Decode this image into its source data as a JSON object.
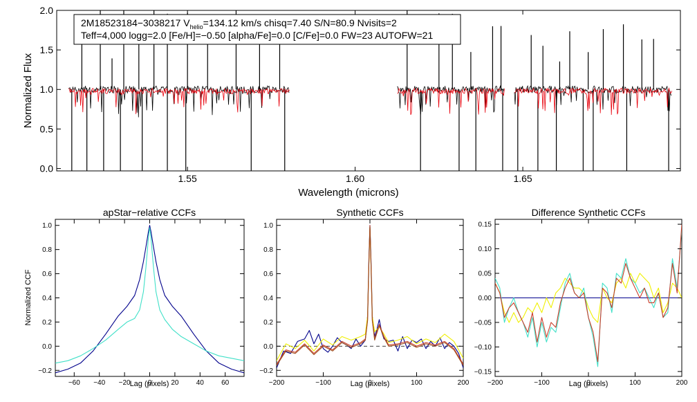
{
  "top_panel": {
    "title_line1_prefix": "2M18523184−3038217  V",
    "title_line1_sub": "helio",
    "title_line1_rest": "=134.12 km/s  chisq=7.40  S/N=80.9  Nvisits=2",
    "title_line2": "Teff=4,000 logg=2.0 [Fe/H]=−0.50 [alpha/Fe]=0.0 [C/Fe]=0.0 FW=23 AUTOFW=21"
  },
  "colors": {
    "observed": "#000000",
    "model": "#e8000b",
    "ccf_dark": "#00008b",
    "ccf_light": "#40e0c8",
    "ccf_yellow": "#f0f000",
    "ccf_red": "#c83c28",
    "ccf_brown": "#a05020",
    "zero_dash": "#404040"
  },
  "chart_data": [
    {
      "id": "spectrum",
      "type": "line",
      "title": "",
      "xlabel": "Wavelength (microns)",
      "ylabel": "Normalized Flux",
      "xlim": [
        1.511,
        1.697
      ],
      "ylim": [
        -0.03,
        2.0
      ],
      "xticks": [
        1.55,
        1.6,
        1.65
      ],
      "xtick_labels": [
        "1.55",
        "1.60",
        "1.65"
      ],
      "yticks": [
        0.0,
        0.5,
        1.0,
        1.5,
        2.0
      ],
      "ytick_labels": [
        "0.0",
        "0.5",
        "1.0",
        "1.5",
        "2.0"
      ],
      "segments": [
        [
          1.5145,
          1.5805
        ],
        [
          1.6125,
          1.6445
        ],
        [
          1.6475,
          1.6945
        ]
      ],
      "continuum": 1.0,
      "series": [
        {
          "name": "observed",
          "color_key": "observed"
        },
        {
          "name": "model",
          "color_key": "model"
        }
      ],
      "spikes_up": [
        1.5185,
        1.524,
        1.5275,
        1.531,
        1.5355,
        1.54,
        1.544,
        1.55,
        1.556,
        1.5645,
        1.5715,
        1.5775,
        1.6155,
        1.625,
        1.629,
        1.6345,
        1.641,
        1.6435,
        1.6525,
        1.656,
        1.661,
        1.664,
        1.6695,
        1.674,
        1.68,
        1.6855,
        1.689
      ],
      "spikes_down": [
        1.5155,
        1.52,
        1.525,
        1.53,
        1.5365,
        1.544,
        1.5495,
        1.569,
        1.579,
        1.6195,
        1.631,
        1.636,
        1.644,
        1.6485,
        1.6545,
        1.66,
        1.668,
        1.671,
        1.681,
        1.6935
      ]
    },
    {
      "id": "apstar-ccf",
      "type": "line",
      "title": "apStar−relative CCFs",
      "xlabel": "Lag (pixels)",
      "ylabel": "Normalized CCF",
      "xlim": [
        -75,
        75
      ],
      "ylim": [
        -0.25,
        1.05
      ],
      "xticks": [
        -60,
        -40,
        -20,
        0,
        20,
        40,
        60
      ],
      "xtick_labels": [
        "−60",
        "−40",
        "−20",
        "0",
        "20",
        "40",
        "60"
      ],
      "yticks": [
        -0.2,
        0.0,
        0.2,
        0.4,
        0.6,
        0.8,
        1.0
      ],
      "ytick_labels": [
        "−0.2",
        "0.0",
        "0.2",
        "0.4",
        "0.6",
        "0.8",
        "1.0"
      ],
      "series": [
        {
          "name": "ccf-1",
          "color_key": "ccf_dark",
          "x": [
            -75,
            -65,
            -55,
            -45,
            -35,
            -25,
            -18,
            -12,
            -8,
            -5,
            -3,
            -1,
            0,
            1,
            3,
            5,
            8,
            12,
            18,
            25,
            35,
            45,
            55,
            65,
            75
          ],
          "y": [
            -0.22,
            -0.19,
            -0.14,
            -0.04,
            0.1,
            0.25,
            0.33,
            0.42,
            0.55,
            0.7,
            0.82,
            0.95,
            1.0,
            0.95,
            0.82,
            0.7,
            0.55,
            0.42,
            0.33,
            0.25,
            0.1,
            -0.04,
            -0.14,
            -0.19,
            -0.22
          ]
        },
        {
          "name": "ccf-2",
          "color_key": "ccf_light",
          "x": [
            -75,
            -65,
            -55,
            -45,
            -35,
            -25,
            -18,
            -12,
            -8,
            -5,
            -3,
            -1,
            0,
            1,
            3,
            5,
            8,
            12,
            18,
            25,
            35,
            45,
            55,
            65,
            75
          ],
          "y": [
            -0.14,
            -0.12,
            -0.08,
            -0.02,
            0.05,
            0.14,
            0.2,
            0.23,
            0.3,
            0.45,
            0.65,
            0.9,
            0.98,
            0.9,
            0.65,
            0.45,
            0.3,
            0.22,
            0.14,
            0.08,
            0.02,
            -0.04,
            -0.08,
            -0.1,
            -0.12
          ]
        }
      ]
    },
    {
      "id": "synthetic-ccf",
      "type": "line",
      "title": "Synthetic CCFs",
      "xlabel": "Lag (pixels)",
      "ylabel": "",
      "xlim": [
        -200,
        200
      ],
      "ylim": [
        -0.25,
        1.05
      ],
      "xticks": [
        -200,
        -100,
        0,
        100,
        200
      ],
      "xtick_labels": [
        "−200",
        "−100",
        "0",
        "100",
        "200"
      ],
      "yticks": [
        -0.2,
        0.0,
        0.2,
        0.4,
        0.6,
        0.8,
        1.0
      ],
      "ytick_labels": [
        "−0.2",
        "0.0",
        "0.2",
        "0.4",
        "0.6",
        "0.8",
        "1.0"
      ],
      "zero_line": 0.0,
      "series": [
        {
          "name": "synth-dark",
          "color_key": "ccf_dark",
          "x": [
            -200,
            -185,
            -170,
            -155,
            -140,
            -130,
            -120,
            -110,
            -100,
            -90,
            -80,
            -70,
            -60,
            -50,
            -40,
            -30,
            -20,
            -10,
            -5,
            -2,
            0,
            2,
            5,
            10,
            15,
            20,
            25,
            30,
            40,
            50,
            60,
            70,
            80,
            90,
            100,
            110,
            120,
            130,
            140,
            150,
            160,
            170,
            180,
            190,
            200
          ],
          "y": [
            -0.18,
            -0.04,
            -0.06,
            0.04,
            0.06,
            0.13,
            0.02,
            0.1,
            -0.02,
            -0.05,
            0.0,
            0.07,
            0.03,
            0.01,
            -0.02,
            0.06,
            0.0,
            0.05,
            0.25,
            0.75,
            1.0,
            0.75,
            0.25,
            0.08,
            0.14,
            0.22,
            0.12,
            0.06,
            0.04,
            0.05,
            -0.04,
            0.08,
            -0.02,
            0.05,
            0.03,
            0.06,
            -0.02,
            0.04,
            0.0,
            0.07,
            -0.02,
            0.03,
            0.0,
            -0.06,
            -0.18
          ]
        },
        {
          "name": "synth-yellow",
          "color_key": "ccf_yellow",
          "x": [
            -200,
            -180,
            -160,
            -140,
            -120,
            -100,
            -80,
            -60,
            -40,
            -20,
            -10,
            -5,
            -2,
            0,
            2,
            5,
            10,
            20,
            30,
            40,
            60,
            80,
            100,
            120,
            140,
            160,
            180,
            200
          ],
          "y": [
            -0.12,
            0.02,
            -0.02,
            0.05,
            -0.04,
            0.06,
            0.01,
            0.08,
            0.05,
            0.08,
            0.1,
            0.25,
            0.7,
            0.98,
            0.7,
            0.25,
            0.12,
            0.16,
            0.1,
            0.03,
            0.05,
            0.08,
            0.02,
            0.06,
            0.03,
            0.1,
            0.04,
            -0.1
          ]
        },
        {
          "name": "synth-red",
          "color_key": "ccf_red",
          "x": [
            -200,
            -180,
            -160,
            -140,
            -120,
            -100,
            -80,
            -60,
            -40,
            -20,
            -10,
            -5,
            -2,
            0,
            2,
            5,
            10,
            20,
            30,
            40,
            60,
            80,
            100,
            120,
            140,
            160,
            180,
            200
          ],
          "y": [
            -0.15,
            -0.03,
            -0.05,
            0.02,
            -0.06,
            0.01,
            -0.03,
            0.04,
            0.0,
            0.03,
            0.06,
            0.22,
            0.72,
            1.0,
            0.72,
            0.22,
            0.06,
            0.18,
            0.08,
            0.01,
            0.02,
            0.04,
            0.0,
            0.03,
            0.01,
            0.04,
            -0.02,
            -0.15
          ]
        },
        {
          "name": "synth-brown",
          "color_key": "ccf_brown",
          "x": [
            -200,
            -180,
            -160,
            -140,
            -120,
            -100,
            -80,
            -60,
            -40,
            -20,
            -10,
            -5,
            -2,
            0,
            2,
            5,
            10,
            20,
            30,
            40,
            60,
            80,
            100,
            120,
            140,
            160,
            180,
            200
          ],
          "y": [
            -0.16,
            -0.04,
            -0.06,
            0.01,
            -0.07,
            0.0,
            -0.04,
            0.03,
            -0.01,
            0.02,
            0.05,
            0.21,
            0.71,
            0.99,
            0.71,
            0.21,
            0.05,
            0.17,
            0.07,
            0.0,
            0.01,
            0.03,
            -0.01,
            0.02,
            0.0,
            0.03,
            -0.03,
            -0.16
          ]
        }
      ]
    },
    {
      "id": "difference-ccf",
      "type": "line",
      "title": "Difference Synthetic CCFs",
      "xlabel": "Lag (pixels)",
      "ylabel": "",
      "xlim": [
        -200,
        200
      ],
      "ylim": [
        -0.16,
        0.16
      ],
      "xticks": [
        -200,
        -100,
        0,
        100,
        200
      ],
      "xtick_labels": [
        "−200",
        "−100",
        "0",
        "100",
        "200"
      ],
      "yticks": [
        -0.15,
        -0.1,
        -0.05,
        0.0,
        0.05,
        0.1,
        0.15
      ],
      "ytick_labels": [
        "−0.15",
        "−0.10",
        "−0.05",
        "0.00",
        "0.05",
        "0.10",
        "0.15"
      ],
      "series": [
        {
          "name": "diff-dark",
          "color_key": "ccf_dark",
          "x": [
            -200,
            200
          ],
          "y": [
            0.0,
            0.0
          ]
        },
        {
          "name": "diff-yellow",
          "color_key": "ccf_yellow",
          "x": [
            -200,
            -190,
            -180,
            -170,
            -160,
            -150,
            -140,
            -130,
            -120,
            -110,
            -100,
            -90,
            -80,
            -70,
            -60,
            -50,
            -40,
            -30,
            -20,
            -10,
            0,
            10,
            20,
            30,
            40,
            50,
            60,
            70,
            80,
            90,
            100,
            110,
            120,
            130,
            140,
            150,
            160,
            170,
            180,
            190,
            200
          ],
          "y": [
            0.03,
            0.01,
            -0.03,
            -0.05,
            -0.03,
            -0.05,
            -0.04,
            -0.02,
            -0.03,
            -0.01,
            -0.03,
            0.0,
            -0.02,
            0.01,
            0.02,
            0.04,
            0.03,
            0.02,
            0.02,
            0.01,
            -0.02,
            -0.04,
            -0.05,
            0.02,
            0.0,
            -0.01,
            0.03,
            0.04,
            0.02,
            0.05,
            0.03,
            0.05,
            0.04,
            0.03,
            0.0,
            0.02,
            -0.03,
            -0.01,
            0.03,
            0.02,
            0.0
          ]
        },
        {
          "name": "diff-cyan",
          "color_key": "ccf_light",
          "x": [
            -200,
            -190,
            -180,
            -170,
            -160,
            -150,
            -140,
            -130,
            -120,
            -110,
            -100,
            -90,
            -80,
            -70,
            -60,
            -50,
            -40,
            -30,
            -20,
            -10,
            0,
            10,
            20,
            30,
            40,
            50,
            60,
            70,
            80,
            90,
            100,
            110,
            120,
            130,
            140,
            150,
            160,
            170,
            180,
            190,
            200
          ],
          "y": [
            0.04,
            0.02,
            -0.05,
            -0.02,
            0.0,
            -0.03,
            -0.05,
            -0.08,
            -0.04,
            -0.1,
            -0.05,
            -0.09,
            -0.06,
            -0.07,
            -0.02,
            0.03,
            0.05,
            0.01,
            0.0,
            0.02,
            -0.04,
            -0.08,
            -0.14,
            0.03,
            0.02,
            -0.03,
            0.05,
            0.04,
            0.08,
            0.04,
            0.03,
            0.01,
            0.02,
            0.0,
            -0.02,
            0.01,
            -0.04,
            -0.03,
            0.08,
            0.02,
            0.14
          ]
        },
        {
          "name": "diff-red",
          "color_key": "ccf_red",
          "x": [
            -200,
            -190,
            -180,
            -170,
            -160,
            -150,
            -140,
            -130,
            -120,
            -110,
            -100,
            -90,
            -80,
            -70,
            -60,
            -50,
            -40,
            -30,
            -20,
            -10,
            0,
            10,
            20,
            30,
            40,
            50,
            60,
            70,
            80,
            90,
            100,
            110,
            120,
            130,
            140,
            150,
            160,
            170,
            180,
            190,
            200
          ],
          "y": [
            0.03,
            0.01,
            -0.04,
            -0.02,
            -0.01,
            -0.03,
            -0.05,
            -0.07,
            -0.03,
            -0.09,
            -0.04,
            -0.08,
            -0.05,
            -0.06,
            -0.01,
            0.02,
            0.04,
            0.01,
            0.0,
            0.01,
            -0.04,
            -0.07,
            -0.13,
            0.02,
            0.01,
            -0.02,
            0.04,
            0.03,
            0.07,
            0.04,
            0.02,
            0.0,
            0.02,
            -0.01,
            -0.01,
            0.01,
            -0.04,
            -0.02,
            0.07,
            0.01,
            0.15
          ]
        }
      ]
    }
  ]
}
